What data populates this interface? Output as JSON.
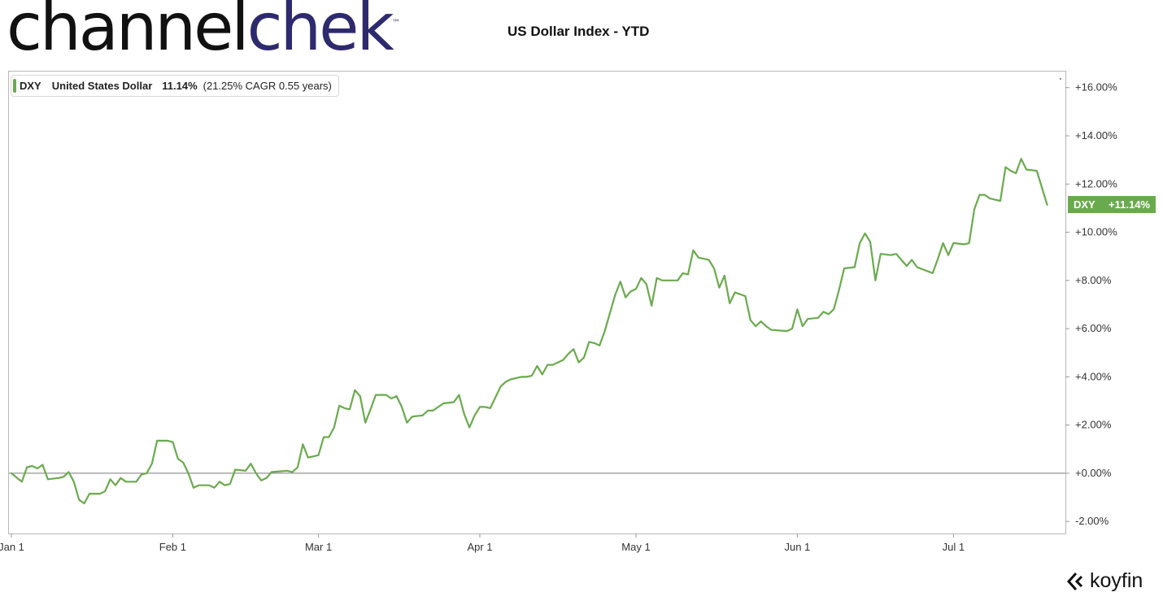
{
  "header": {
    "logo_part1": "channel",
    "logo_part2": "chek",
    "logo_tm": "™",
    "title": "US Dollar Index - YTD"
  },
  "legend": {
    "ticker": "DXY",
    "name": "United States Dollar",
    "change": "11.14%",
    "cagr": "(21.25% CAGR 0.55 years)",
    "color": "#6aaa4e"
  },
  "last_value_badge": {
    "ticker": "DXY",
    "value": "+11.14%"
  },
  "watermark": {
    "brand": "koyfin",
    "icon": "koyfin-logo-icon"
  },
  "chart_data": {
    "type": "line",
    "title": "US Dollar Index - YTD",
    "xlabel": "",
    "ylabel": "",
    "x_ticks": [
      "Jan 1",
      "Feb 1",
      "Mar 1",
      "Apr 1",
      "May 1",
      "Jun 1",
      "Jul 1"
    ],
    "y_ticks": [
      "-2.00%",
      "+0.00%",
      "+2.00%",
      "+4.00%",
      "+6.00%",
      "+8.00%",
      "+10.00%",
      "+12.00%",
      "+14.00%",
      "+16.00%"
    ],
    "xlim": [
      "2022-01-01",
      "2022-07-20"
    ],
    "ylim": [
      -2.5,
      16.7
    ],
    "y_unit": "%",
    "grid": false,
    "zero_line": true,
    "legend_position": "top-left",
    "series": [
      {
        "name": "DXY",
        "color": "#6aaa4e",
        "points": [
          [
            "2022-01-01",
            0.0
          ],
          [
            "2022-01-03",
            -0.35
          ],
          [
            "2022-01-04",
            0.25
          ],
          [
            "2022-01-05",
            0.3
          ],
          [
            "2022-01-06",
            0.2
          ],
          [
            "2022-01-07",
            0.35
          ],
          [
            "2022-01-08",
            -0.25
          ],
          [
            "2022-01-10",
            -0.2
          ],
          [
            "2022-01-11",
            -0.15
          ],
          [
            "2022-01-12",
            0.05
          ],
          [
            "2022-01-13",
            -0.35
          ],
          [
            "2022-01-14",
            -1.1
          ],
          [
            "2022-01-15",
            -1.25
          ],
          [
            "2022-01-16",
            -0.85
          ],
          [
            "2022-01-18",
            -0.85
          ],
          [
            "2022-01-19",
            -0.75
          ],
          [
            "2022-01-20",
            -0.25
          ],
          [
            "2022-01-21",
            -0.5
          ],
          [
            "2022-01-22",
            -0.2
          ],
          [
            "2022-01-23",
            -0.35
          ],
          [
            "2022-01-25",
            -0.35
          ],
          [
            "2022-01-26",
            -0.05
          ],
          [
            "2022-01-27",
            0.0
          ],
          [
            "2022-01-28",
            0.4
          ],
          [
            "2022-01-29",
            1.35
          ],
          [
            "2022-01-31",
            1.35
          ],
          [
            "2022-02-01",
            1.3
          ],
          [
            "2022-02-02",
            0.6
          ],
          [
            "2022-02-03",
            0.45
          ],
          [
            "2022-02-04",
            0.0
          ],
          [
            "2022-02-05",
            -0.6
          ],
          [
            "2022-02-06",
            -0.5
          ],
          [
            "2022-02-08",
            -0.5
          ],
          [
            "2022-02-09",
            -0.6
          ],
          [
            "2022-02-10",
            -0.35
          ],
          [
            "2022-02-11",
            -0.5
          ],
          [
            "2022-02-12",
            -0.45
          ],
          [
            "2022-02-13",
            0.15
          ],
          [
            "2022-02-15",
            0.1
          ],
          [
            "2022-02-16",
            0.4
          ],
          [
            "2022-02-17",
            0.0
          ],
          [
            "2022-02-18",
            -0.3
          ],
          [
            "2022-02-19",
            -0.2
          ],
          [
            "2022-02-20",
            0.05
          ],
          [
            "2022-02-23",
            0.1
          ],
          [
            "2022-02-24",
            0.05
          ],
          [
            "2022-02-25",
            0.25
          ],
          [
            "2022-02-26",
            1.2
          ],
          [
            "2022-02-27",
            0.65
          ],
          [
            "2022-03-01",
            0.75
          ],
          [
            "2022-03-02",
            1.5
          ],
          [
            "2022-03-03",
            1.5
          ],
          [
            "2022-03-04",
            1.9
          ],
          [
            "2022-03-05",
            2.8
          ],
          [
            "2022-03-06",
            2.7
          ],
          [
            "2022-03-07",
            2.65
          ],
          [
            "2022-03-08",
            3.45
          ],
          [
            "2022-03-09",
            3.2
          ],
          [
            "2022-03-10",
            2.1
          ],
          [
            "2022-03-11",
            2.65
          ],
          [
            "2022-03-12",
            3.25
          ],
          [
            "2022-03-14",
            3.25
          ],
          [
            "2022-03-15",
            3.1
          ],
          [
            "2022-03-16",
            3.2
          ],
          [
            "2022-03-17",
            2.75
          ],
          [
            "2022-03-18",
            2.1
          ],
          [
            "2022-03-19",
            2.35
          ],
          [
            "2022-03-21",
            2.4
          ],
          [
            "2022-03-22",
            2.6
          ],
          [
            "2022-03-23",
            2.6
          ],
          [
            "2022-03-24",
            2.75
          ],
          [
            "2022-03-25",
            2.9
          ],
          [
            "2022-03-27",
            2.95
          ],
          [
            "2022-03-28",
            3.25
          ],
          [
            "2022-03-29",
            2.45
          ],
          [
            "2022-03-30",
            1.9
          ],
          [
            "2022-03-31",
            2.4
          ],
          [
            "2022-04-01",
            2.75
          ],
          [
            "2022-04-02",
            2.75
          ],
          [
            "2022-04-03",
            2.7
          ],
          [
            "2022-04-05",
            3.6
          ],
          [
            "2022-04-06",
            3.8
          ],
          [
            "2022-04-07",
            3.9
          ],
          [
            "2022-04-09",
            4.0
          ],
          [
            "2022-04-10",
            4.0
          ],
          [
            "2022-04-11",
            4.05
          ],
          [
            "2022-04-12",
            4.45
          ],
          [
            "2022-04-13",
            4.1
          ],
          [
            "2022-04-14",
            4.5
          ],
          [
            "2022-04-15",
            4.5
          ],
          [
            "2022-04-16",
            4.6
          ],
          [
            "2022-04-17",
            4.7
          ],
          [
            "2022-04-18",
            4.95
          ],
          [
            "2022-04-19",
            5.15
          ],
          [
            "2022-04-20",
            4.6
          ],
          [
            "2022-04-21",
            4.8
          ],
          [
            "2022-04-22",
            5.45
          ],
          [
            "2022-04-23",
            5.4
          ],
          [
            "2022-04-24",
            5.3
          ],
          [
            "2022-04-25",
            5.9
          ],
          [
            "2022-04-26",
            6.65
          ],
          [
            "2022-04-27",
            7.4
          ],
          [
            "2022-04-28",
            7.95
          ],
          [
            "2022-04-29",
            7.3
          ],
          [
            "2022-04-30",
            7.55
          ],
          [
            "2022-05-01",
            7.65
          ],
          [
            "2022-05-02",
            8.1
          ],
          [
            "2022-05-03",
            7.85
          ],
          [
            "2022-05-04",
            6.95
          ],
          [
            "2022-05-05",
            8.1
          ],
          [
            "2022-05-06",
            8.0
          ],
          [
            "2022-05-07",
            8.0
          ],
          [
            "2022-05-09",
            8.0
          ],
          [
            "2022-05-10",
            8.3
          ],
          [
            "2022-05-11",
            8.25
          ],
          [
            "2022-05-12",
            9.25
          ],
          [
            "2022-05-13",
            8.95
          ],
          [
            "2022-05-15",
            8.85
          ],
          [
            "2022-05-16",
            8.5
          ],
          [
            "2022-05-17",
            7.7
          ],
          [
            "2022-05-18",
            8.2
          ],
          [
            "2022-05-19",
            7.05
          ],
          [
            "2022-05-20",
            7.5
          ],
          [
            "2022-05-22",
            7.35
          ],
          [
            "2022-05-23",
            6.35
          ],
          [
            "2022-05-24",
            6.1
          ],
          [
            "2022-05-25",
            6.3
          ],
          [
            "2022-05-26",
            6.1
          ],
          [
            "2022-05-27",
            5.95
          ],
          [
            "2022-05-30",
            5.9
          ],
          [
            "2022-05-31",
            6.0
          ],
          [
            "2022-06-01",
            6.8
          ],
          [
            "2022-06-02",
            6.1
          ],
          [
            "2022-06-03",
            6.4
          ],
          [
            "2022-06-05",
            6.45
          ],
          [
            "2022-06-06",
            6.7
          ],
          [
            "2022-06-07",
            6.6
          ],
          [
            "2022-06-08",
            6.8
          ],
          [
            "2022-06-09",
            7.6
          ],
          [
            "2022-06-10",
            8.5
          ],
          [
            "2022-06-12",
            8.55
          ],
          [
            "2022-06-13",
            9.55
          ],
          [
            "2022-06-14",
            9.95
          ],
          [
            "2022-06-15",
            9.6
          ],
          [
            "2022-06-16",
            8.0
          ],
          [
            "2022-06-17",
            9.1
          ],
          [
            "2022-06-19",
            9.05
          ],
          [
            "2022-06-20",
            9.1
          ],
          [
            "2022-06-21",
            8.85
          ],
          [
            "2022-06-22",
            8.6
          ],
          [
            "2022-06-23",
            8.85
          ],
          [
            "2022-06-24",
            8.55
          ],
          [
            "2022-06-27",
            8.3
          ],
          [
            "2022-06-28",
            8.9
          ],
          [
            "2022-06-29",
            9.55
          ],
          [
            "2022-06-30",
            9.05
          ],
          [
            "2022-07-01",
            9.55
          ],
          [
            "2022-07-03",
            9.5
          ],
          [
            "2022-07-04",
            9.55
          ],
          [
            "2022-07-05",
            10.95
          ],
          [
            "2022-07-06",
            11.55
          ],
          [
            "2022-07-07",
            11.55
          ],
          [
            "2022-07-08",
            11.4
          ],
          [
            "2022-07-10",
            11.3
          ],
          [
            "2022-07-11",
            12.7
          ],
          [
            "2022-07-12",
            12.55
          ],
          [
            "2022-07-13",
            12.45
          ],
          [
            "2022-07-14",
            13.05
          ],
          [
            "2022-07-15",
            12.6
          ],
          [
            "2022-07-17",
            12.55
          ],
          [
            "2022-07-19",
            11.14
          ]
        ]
      }
    ]
  }
}
